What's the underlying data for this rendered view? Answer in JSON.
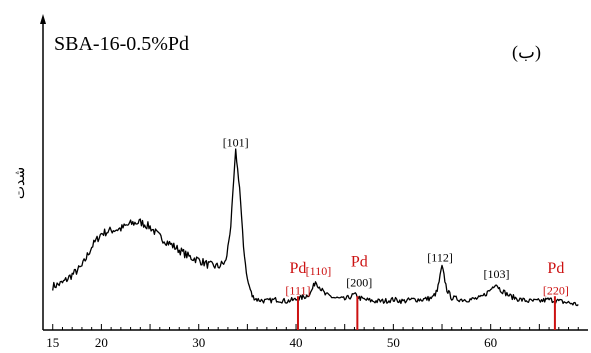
{
  "chart_data": {
    "type": "line",
    "title": "SBA-16-0.5%Pd",
    "panel_label": "(ب)",
    "ylabel": "شدت",
    "xlabel": "",
    "xlim": [
      14,
      70
    ],
    "ylim": [
      0,
      125
    ],
    "x_ticks": [
      15,
      20,
      30,
      40,
      50,
      60
    ],
    "grid": false,
    "line_color": "#000000",
    "pd_color": "#cc1111",
    "series": [
      {
        "values": [
          [
            15,
            18
          ],
          [
            16,
            20
          ],
          [
            17,
            25
          ],
          [
            18,
            30
          ],
          [
            19,
            42
          ],
          [
            20,
            50
          ],
          [
            21,
            52
          ],
          [
            22,
            53
          ],
          [
            23,
            56
          ],
          [
            24,
            57
          ],
          [
            25,
            54
          ],
          [
            26,
            48
          ],
          [
            27,
            44
          ],
          [
            28,
            40
          ],
          [
            29,
            36
          ],
          [
            30,
            34
          ],
          [
            31,
            31
          ],
          [
            32,
            30
          ],
          [
            32.8,
            33
          ],
          [
            33.3,
            55
          ],
          [
            33.8,
            100
          ],
          [
            34.2,
            78
          ],
          [
            34.6,
            42
          ],
          [
            35,
            22
          ],
          [
            35.5,
            12
          ],
          [
            36,
            10
          ],
          [
            37,
            9
          ],
          [
            38,
            10
          ],
          [
            39,
            9
          ],
          [
            40,
            10
          ],
          [
            40.5,
            11
          ],
          [
            41,
            12
          ],
          [
            41.5,
            14
          ],
          [
            42,
            21
          ],
          [
            42.5,
            17
          ],
          [
            43,
            13
          ],
          [
            44,
            11
          ],
          [
            45,
            10
          ],
          [
            46,
            13
          ],
          [
            46.5,
            11
          ],
          [
            47,
            10
          ],
          [
            48,
            9
          ],
          [
            49,
            9
          ],
          [
            50,
            10
          ],
          [
            51,
            9
          ],
          [
            52,
            10
          ],
          [
            53,
            10
          ],
          [
            54,
            11
          ],
          [
            54.5,
            15
          ],
          [
            55,
            30
          ],
          [
            55.5,
            16
          ],
          [
            56,
            11
          ],
          [
            57,
            10
          ],
          [
            58,
            10
          ],
          [
            59,
            11
          ],
          [
            60,
            16
          ],
          [
            60.5,
            20
          ],
          [
            61,
            16
          ],
          [
            62,
            12
          ],
          [
            63,
            10
          ],
          [
            64,
            9
          ],
          [
            65,
            9
          ],
          [
            66,
            10
          ],
          [
            67,
            9
          ],
          [
            68,
            8
          ],
          [
            69,
            7
          ]
        ]
      }
    ],
    "annotations": [
      {
        "text": "[101]",
        "x": 33.8,
        "y": 103,
        "color": "#000000"
      },
      {
        "text": "[110]",
        "x": 42.3,
        "y": 25,
        "color": "#cc1111"
      },
      {
        "text": "[200]",
        "x": 46.5,
        "y": 18,
        "color": "#000000"
      },
      {
        "text": "[112]",
        "x": 54.8,
        "y": 33,
        "color": "#000000"
      },
      {
        "text": "[103]",
        "x": 60.6,
        "y": 23,
        "color": "#000000"
      },
      {
        "text": "[111]",
        "x": 40.2,
        "y": 13,
        "color": "#cc1111"
      },
      {
        "text": "[220]",
        "x": 66.7,
        "y": 13,
        "color": "#cc1111"
      },
      {
        "text": "Pd",
        "x": 40.2,
        "y": 26,
        "color": "#cc1111"
      },
      {
        "text": "Pd",
        "x": 46.5,
        "y": 30,
        "color": "#cc1111"
      },
      {
        "text": "Pd",
        "x": 66.7,
        "y": 26,
        "color": "#cc1111"
      }
    ],
    "pd_markers": [
      40.2,
      46.3,
      66.6
    ]
  }
}
